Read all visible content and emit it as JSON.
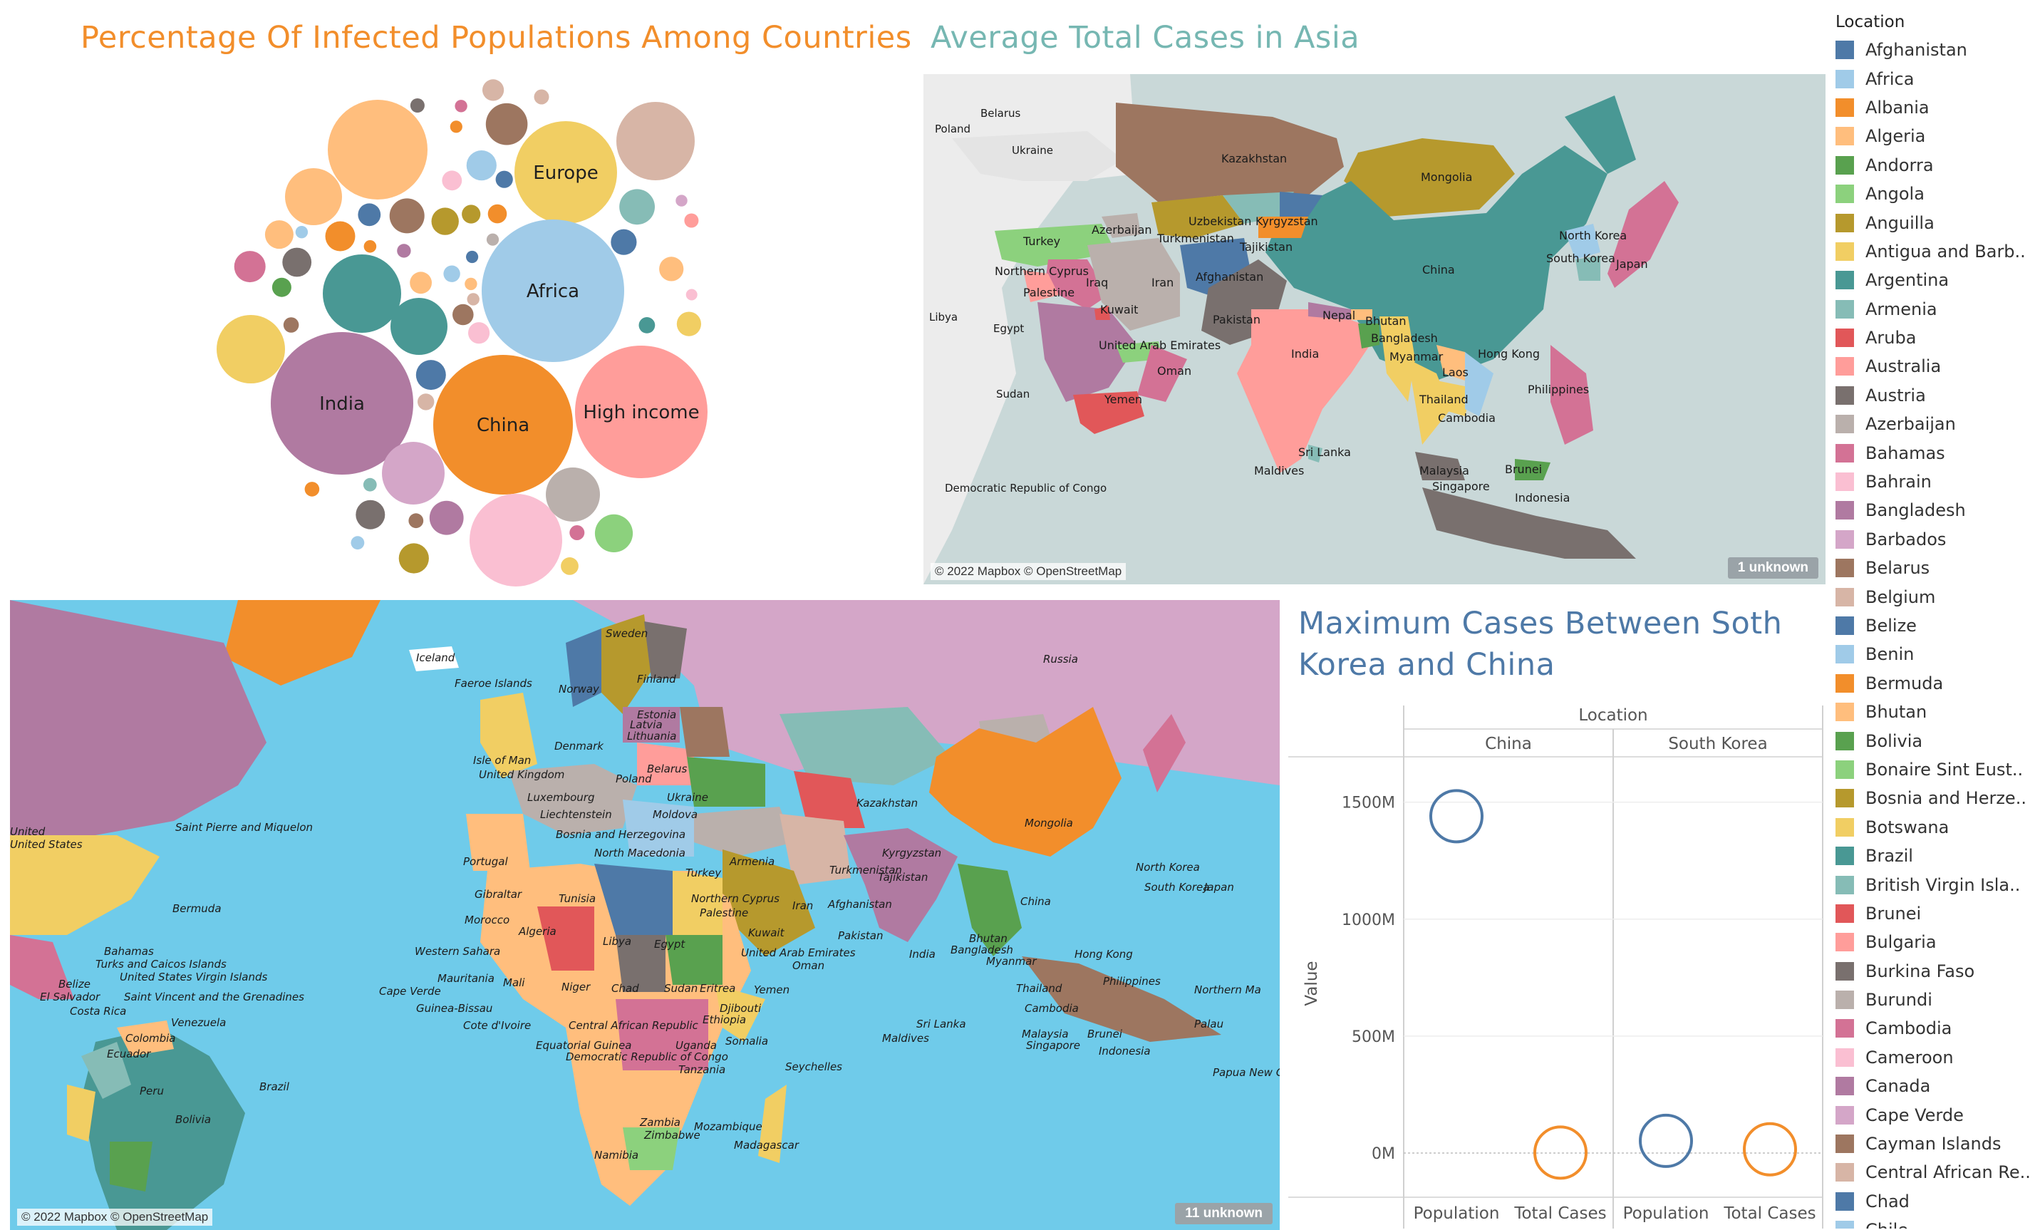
{
  "colors": {
    "bubble_title": "#f28e2b",
    "asia_title": "#76b7b2",
    "dotplot_title": "#4e79a7",
    "population": "#4e79a7",
    "total_cases": "#f28e2b"
  },
  "bubble_chart": {
    "title": "Percentage Of Infected Populations Among Countries",
    "labels": {
      "europe": "Europe",
      "africa": "Africa",
      "india": "India",
      "china": "China",
      "high_income": "High income"
    }
  },
  "asia_map": {
    "title": "Average Total Cases in Asia",
    "credit": "© 2022 Mapbox © OpenStreetMap",
    "unknown_badge": "1 unknown",
    "labels": {
      "kazakhstan": "Kazakhstan",
      "mongolia": "Mongolia",
      "china": "China",
      "uzbekistan": "Uzbekistan",
      "kyrgyzstan": "Kyrgyzstan",
      "azerbaijan": "Azerbaijan",
      "turkmenistan": "Turkmenistan",
      "tajikistan": "Tajikistan",
      "turkey": "Turkey",
      "northern_cyprus": "Northern Cyprus",
      "palestine": "Palestine",
      "iraq": "Iraq",
      "iran": "Iran",
      "afghanistan": "Afghanistan",
      "kuwait": "Kuwait",
      "pakistan": "Pakistan",
      "uae": "United Arab Emirates",
      "oman": "Oman",
      "yemen": "Yemen",
      "india": "India",
      "nepal": "Nepal",
      "bhutan": "Bhutan",
      "bangladesh": "Bangladesh",
      "myanmar": "Myanmar",
      "laos": "Laos",
      "thailand": "Thailand",
      "cambodia": "Cambodia",
      "hong_kong": "Hong Kong",
      "philippines": "Philippines",
      "north_korea": "North Korea",
      "south_korea": "South Korea",
      "japan": "Japan",
      "sri_lanka": "Sri Lanka",
      "maldives": "Maldives",
      "malaysia": "Malaysia",
      "brunei": "Brunei",
      "singapore": "Singapore",
      "indonesia": "Indonesia",
      "poland": "Poland",
      "belarus": "Belarus",
      "ukraine": "Ukraine",
      "libya": "Libya",
      "egypt": "Egypt",
      "sudan": "Sudan",
      "drc": "Democratic Republic of Congo"
    }
  },
  "world_map": {
    "credit": "© 2022 Mapbox © OpenStreetMap",
    "unknown_badge": "11 unknown",
    "labels": {
      "iceland": "Iceland",
      "sweden": "Sweden",
      "finland": "Finland",
      "russia": "Russia",
      "faeroe": "Faeroe Islands",
      "norway": "Norway",
      "estonia": "Estonia",
      "latvia": "Latvia",
      "lithuania": "Lithuania",
      "denmark": "Denmark",
      "isle_of_man": "Isle of Man",
      "uk": "United Kingdom",
      "belarus": "Belarus",
      "poland": "Poland",
      "luxembourg": "Luxembourg",
      "ukraine": "Ukraine",
      "liechtenstein": "Liechtenstein",
      "moldova": "Moldova",
      "kazakhstan": "Kazakhstan",
      "mongolia": "Mongolia",
      "bosnia": "Bosnia and Herzegovina",
      "north_macedonia": "North Macedonia",
      "kyrgyzstan": "Kyrgyzstan",
      "turkmenistan": "Turkmenistan",
      "tajikistan": "Tajikistan",
      "armenia": "Armenia",
      "turkey": "Turkey",
      "saint_pierre": "Saint Pierre and Miquelon",
      "portugal": "Portugal",
      "china": "China",
      "north_korea": "North Korea",
      "south_korea": "South Korea",
      "japan": "Japan",
      "gibraltar": "Gibraltar",
      "tunisia": "Tunisia",
      "northern_cyprus": "Northern Cyprus",
      "palestine": "Palestine",
      "iran": "Iran",
      "afghanistan": "Afghanistan",
      "bermuda": "Bermuda",
      "morocco": "Morocco",
      "algeria": "Algeria",
      "libya": "Libya",
      "egypt": "Egypt",
      "kuwait": "Kuwait",
      "pakistan": "Pakistan",
      "uae": "United Arab Emirates",
      "bhutan": "Bhutan",
      "bangladesh": "Bangladesh",
      "myanmar": "Myanmar",
      "india": "India",
      "oman": "Oman",
      "hong_kong": "Hong Kong",
      "bahamas": "Bahamas",
      "turks": "Turks and Caicos Islands",
      "usvi": "United States Virgin Islands",
      "western_sahara": "Western Sahara",
      "mauritania": "Mauritania",
      "mali": "Mali",
      "niger": "Niger",
      "chad": "Chad",
      "sudan": "Sudan",
      "eritrea": "Eritrea",
      "yemen": "Yemen",
      "thailand": "Thailand",
      "philippines": "Philippines",
      "northern_mariana": "Northern Ma",
      "belize": "Belize",
      "el_salvador": "El Salvador",
      "saint_vincent": "Saint Vincent and the Grenadines",
      "cape_verde": "Cape Verde",
      "guinea_bissau": "Guinea-Bissau",
      "djibouti": "Djibouti",
      "ethiopia": "Ethiopia",
      "cambodia": "Cambodia",
      "costa_rica": "Costa Rica",
      "venezuela": "Venezuela",
      "cote_divoire": "Cote d'Ivoire",
      "car": "Central African Republic",
      "sri_lanka": "Sri Lanka",
      "palau": "Palau",
      "colombia": "Colombia",
      "malaysia": "Malaysia",
      "brunei": "Brunei",
      "singapore": "Singapore",
      "maldives": "Maldives",
      "somalia": "Somalia",
      "ecuador": "Ecuador",
      "equatorial_guinea": "Equatorial Guinea",
      "uganda": "Uganda",
      "drc": "Democratic Republic of Congo",
      "indonesia": "Indonesia",
      "tanzania": "Tanzania",
      "seychelles": "Seychelles",
      "papua": "Papua New G",
      "peru": "Peru",
      "brazil": "Brazil",
      "bolivia": "Bolivia",
      "zambia": "Zambia",
      "mozambique": "Mozambique",
      "zimbabwe": "Zimbabwe",
      "madagascar": "Madagascar",
      "namibia": "Namibia",
      "united_states": "United States",
      "united_a": "United"
    }
  },
  "dot_plot": {
    "title_line1": "Maximum Cases Between Soth",
    "title_line2": "Korea and China",
    "header": "Location",
    "y_axis_label": "Value",
    "y_ticks": [
      "1500M",
      "1000M",
      "500M",
      "0M"
    ],
    "columns": [
      "China",
      "South Korea"
    ],
    "x_labels": [
      "Population",
      "Total Cases",
      "Population",
      "Total Cases"
    ]
  },
  "chart_data": {
    "type": "scatter",
    "title": "Maximum Cases Between Soth Korea and China",
    "xlabel": "",
    "ylabel": "Value",
    "ylim": [
      0,
      1700000000
    ],
    "categories": [
      "Population",
      "Total Cases"
    ],
    "panels": [
      "China",
      "South Korea"
    ],
    "series": [
      {
        "name": "China",
        "values": [
          1440000000,
          2000000
        ]
      },
      {
        "name": "South Korea",
        "values": [
          52000000,
          16000000
        ]
      }
    ]
  },
  "legend": {
    "title": "Location",
    "items": [
      {
        "label": "Afghanistan",
        "color": "#4e79a7"
      },
      {
        "label": "Africa",
        "color": "#a0cbe8"
      },
      {
        "label": "Albania",
        "color": "#f28e2b"
      },
      {
        "label": "Algeria",
        "color": "#ffbe7d"
      },
      {
        "label": "Andorra",
        "color": "#59a14f"
      },
      {
        "label": "Angola",
        "color": "#8cd17d"
      },
      {
        "label": "Anguilla",
        "color": "#b6992d"
      },
      {
        "label": "Antigua and Barb..",
        "color": "#f1ce63"
      },
      {
        "label": "Argentina",
        "color": "#499894"
      },
      {
        "label": "Armenia",
        "color": "#86bcb6"
      },
      {
        "label": "Aruba",
        "color": "#e15759"
      },
      {
        "label": "Australia",
        "color": "#ff9d9a"
      },
      {
        "label": "Austria",
        "color": "#79706e"
      },
      {
        "label": "Azerbaijan",
        "color": "#bab0ac"
      },
      {
        "label": "Bahamas",
        "color": "#d37295"
      },
      {
        "label": "Bahrain",
        "color": "#fabfd2"
      },
      {
        "label": "Bangladesh",
        "color": "#b07aa1"
      },
      {
        "label": "Barbados",
        "color": "#d4a6c8"
      },
      {
        "label": "Belarus",
        "color": "#9d7660"
      },
      {
        "label": "Belgium",
        "color": "#d7b5a6"
      },
      {
        "label": "Belize",
        "color": "#4e79a7"
      },
      {
        "label": "Benin",
        "color": "#a0cbe8"
      },
      {
        "label": "Bermuda",
        "color": "#f28e2b"
      },
      {
        "label": "Bhutan",
        "color": "#ffbe7d"
      },
      {
        "label": "Bolivia",
        "color": "#59a14f"
      },
      {
        "label": "Bonaire Sint Eust..",
        "color": "#8cd17d"
      },
      {
        "label": "Bosnia and Herze..",
        "color": "#b6992d"
      },
      {
        "label": "Botswana",
        "color": "#f1ce63"
      },
      {
        "label": "Brazil",
        "color": "#499894"
      },
      {
        "label": "British Virgin Isla..",
        "color": "#86bcb6"
      },
      {
        "label": "Brunei",
        "color": "#e15759"
      },
      {
        "label": "Bulgaria",
        "color": "#ff9d9a"
      },
      {
        "label": "Burkina Faso",
        "color": "#79706e"
      },
      {
        "label": "Burundi",
        "color": "#bab0ac"
      },
      {
        "label": "Cambodia",
        "color": "#d37295"
      },
      {
        "label": "Cameroon",
        "color": "#fabfd2"
      },
      {
        "label": "Canada",
        "color": "#b07aa1"
      },
      {
        "label": "Cape Verde",
        "color": "#d4a6c8"
      },
      {
        "label": "Cayman Islands",
        "color": "#9d7660"
      },
      {
        "label": "Central African Re..",
        "color": "#d7b5a6"
      },
      {
        "label": "Chad",
        "color": "#4e79a7"
      },
      {
        "label": "Chile",
        "color": "#a0cbe8"
      }
    ]
  }
}
